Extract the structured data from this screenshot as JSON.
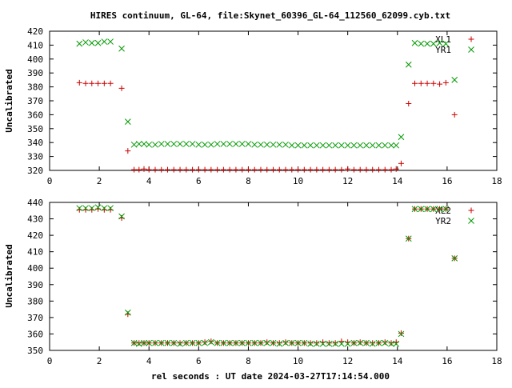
{
  "chart_data": [
    {
      "type": "scatter",
      "title": "HIRES continuum, GL-64, file:Skynet_60396_GL-64_112560_62099.cyb.txt",
      "xlabel": "",
      "ylabel": "Uncalibrated",
      "xlim": [
        0,
        18
      ],
      "ylim": [
        320,
        420
      ],
      "xticks": [
        "0",
        "2",
        "4",
        "6",
        "8",
        "10",
        "12",
        "14",
        "16",
        "18"
      ],
      "yticks": [
        "320",
        "330",
        "340",
        "350",
        "360",
        "370",
        "380",
        "390",
        "400",
        "410",
        "420"
      ],
      "legend_position": "top-right",
      "series": [
        {
          "name": "XL1",
          "marker": "plus",
          "color": "#cc0000",
          "points": [
            [
              1.2,
              383
            ],
            [
              1.45,
              382.5
            ],
            [
              1.7,
              382.5
            ],
            [
              1.95,
              382.5
            ],
            [
              2.2,
              382.5
            ],
            [
              2.45,
              382.5
            ],
            [
              2.9,
              379
            ],
            [
              3.15,
              334
            ],
            [
              3.4,
              320.5
            ],
            [
              3.6,
              320.5
            ],
            [
              3.8,
              321
            ],
            [
              4.0,
              320.5
            ],
            [
              4.25,
              320.5
            ],
            [
              4.5,
              320.5
            ],
            [
              4.75,
              320.5
            ],
            [
              5.0,
              320.5
            ],
            [
              5.25,
              320.5
            ],
            [
              5.5,
              320.5
            ],
            [
              5.75,
              320.5
            ],
            [
              6.0,
              320.5
            ],
            [
              6.25,
              320.5
            ],
            [
              6.5,
              320.5
            ],
            [
              6.75,
              320.5
            ],
            [
              7.0,
              320.5
            ],
            [
              7.25,
              320.5
            ],
            [
              7.5,
              320.5
            ],
            [
              7.75,
              320.5
            ],
            [
              8.0,
              320.5
            ],
            [
              8.25,
              320.5
            ],
            [
              8.5,
              320.5
            ],
            [
              8.75,
              320.5
            ],
            [
              9.0,
              320.5
            ],
            [
              9.25,
              320.5
            ],
            [
              9.5,
              320.5
            ],
            [
              9.75,
              320.5
            ],
            [
              10.0,
              320.5
            ],
            [
              10.25,
              320.5
            ],
            [
              10.5,
              320.5
            ],
            [
              10.75,
              320.5
            ],
            [
              11.0,
              320.5
            ],
            [
              11.25,
              320.5
            ],
            [
              11.5,
              320.5
            ],
            [
              11.75,
              320.5
            ],
            [
              12.0,
              321
            ],
            [
              12.25,
              320.5
            ],
            [
              12.5,
              320.5
            ],
            [
              12.75,
              320.5
            ],
            [
              13.0,
              320.5
            ],
            [
              13.25,
              320.5
            ],
            [
              13.5,
              320.5
            ],
            [
              13.75,
              320.5
            ],
            [
              13.95,
              321
            ],
            [
              14.15,
              325
            ],
            [
              14.45,
              368
            ],
            [
              14.7,
              382.5
            ],
            [
              14.95,
              382.5
            ],
            [
              15.2,
              382.5
            ],
            [
              15.45,
              382.5
            ],
            [
              15.7,
              382
            ],
            [
              15.95,
              383
            ],
            [
              16.3,
              360
            ]
          ]
        },
        {
          "name": "YR1",
          "marker": "cross",
          "color": "#009900",
          "points": [
            [
              1.2,
              411
            ],
            [
              1.45,
              412
            ],
            [
              1.7,
              411.5
            ],
            [
              1.95,
              411.5
            ],
            [
              2.2,
              412.5
            ],
            [
              2.45,
              412.5
            ],
            [
              2.9,
              407.5
            ],
            [
              3.15,
              355
            ],
            [
              3.4,
              338.5
            ],
            [
              3.6,
              339
            ],
            [
              3.8,
              339
            ],
            [
              4.0,
              338.5
            ],
            [
              4.25,
              338.5
            ],
            [
              4.5,
              339
            ],
            [
              4.75,
              339
            ],
            [
              5.0,
              339
            ],
            [
              5.25,
              339
            ],
            [
              5.5,
              339
            ],
            [
              5.75,
              339
            ],
            [
              6.0,
              338.5
            ],
            [
              6.25,
              338.5
            ],
            [
              6.5,
              338.5
            ],
            [
              6.75,
              339
            ],
            [
              7.0,
              339
            ],
            [
              7.25,
              339
            ],
            [
              7.5,
              339
            ],
            [
              7.75,
              339
            ],
            [
              8.0,
              339
            ],
            [
              8.25,
              338.5
            ],
            [
              8.5,
              338.5
            ],
            [
              8.75,
              338.5
            ],
            [
              9.0,
              338.5
            ],
            [
              9.25,
              338.5
            ],
            [
              9.5,
              338.5
            ],
            [
              9.75,
              338
            ],
            [
              10.0,
              338
            ],
            [
              10.25,
              338
            ],
            [
              10.5,
              338
            ],
            [
              10.75,
              338
            ],
            [
              11.0,
              338
            ],
            [
              11.25,
              338
            ],
            [
              11.5,
              338
            ],
            [
              11.75,
              338
            ],
            [
              12.0,
              338
            ],
            [
              12.25,
              338
            ],
            [
              12.5,
              338
            ],
            [
              12.75,
              338
            ],
            [
              13.0,
              338
            ],
            [
              13.25,
              338
            ],
            [
              13.5,
              338
            ],
            [
              13.75,
              338
            ],
            [
              13.95,
              338
            ],
            [
              14.15,
              344
            ],
            [
              14.45,
              396
            ],
            [
              14.7,
              411.5
            ],
            [
              14.95,
              411
            ],
            [
              15.2,
              411
            ],
            [
              15.45,
              411
            ],
            [
              15.7,
              411.5
            ],
            [
              15.95,
              411
            ],
            [
              16.3,
              385
            ]
          ]
        }
      ]
    },
    {
      "type": "scatter",
      "title": "",
      "xlabel": "rel seconds : UT date 2024-03-27T17:14:54.000",
      "ylabel": "Uncalibrated",
      "xlim": [
        0,
        18
      ],
      "ylim": [
        350,
        440
      ],
      "xticks": [
        "0",
        "2",
        "4",
        "6",
        "8",
        "10",
        "12",
        "14",
        "16",
        "18"
      ],
      "yticks": [
        "350",
        "360",
        "370",
        "380",
        "390",
        "400",
        "410",
        "420",
        "430",
        "440"
      ],
      "legend_position": "top-right",
      "series": [
        {
          "name": "XL2",
          "marker": "plus",
          "color": "#cc0000",
          "points": [
            [
              1.2,
              435.5
            ],
            [
              1.45,
              435.5
            ],
            [
              1.7,
              435.5
            ],
            [
              1.95,
              436
            ],
            [
              2.2,
              435.5
            ],
            [
              2.45,
              435.5
            ],
            [
              2.9,
              430.5
            ],
            [
              3.15,
              372
            ],
            [
              3.4,
              354.5
            ],
            [
              3.6,
              354.5
            ],
            [
              3.8,
              354.5
            ],
            [
              4.0,
              354.5
            ],
            [
              4.25,
              354.5
            ],
            [
              4.5,
              354.5
            ],
            [
              4.75,
              354.5
            ],
            [
              5.0,
              354.5
            ],
            [
              5.25,
              354.5
            ],
            [
              5.5,
              354.5
            ],
            [
              5.75,
              354.5
            ],
            [
              6.0,
              354.5
            ],
            [
              6.25,
              355
            ],
            [
              6.5,
              355.5
            ],
            [
              6.75,
              354.5
            ],
            [
              7.0,
              354.5
            ],
            [
              7.25,
              354.5
            ],
            [
              7.5,
              354.5
            ],
            [
              7.75,
              354.5
            ],
            [
              8.0,
              354.5
            ],
            [
              8.25,
              354.5
            ],
            [
              8.5,
              354.5
            ],
            [
              8.75,
              355
            ],
            [
              9.0,
              354.5
            ],
            [
              9.25,
              354.5
            ],
            [
              9.5,
              355
            ],
            [
              9.75,
              354.5
            ],
            [
              10.0,
              354.5
            ],
            [
              10.25,
              354.5
            ],
            [
              10.5,
              354.5
            ],
            [
              10.75,
              354.5
            ],
            [
              11.0,
              355
            ],
            [
              11.25,
              354.5
            ],
            [
              11.5,
              354.5
            ],
            [
              11.75,
              355.5
            ],
            [
              12.0,
              355
            ],
            [
              12.25,
              354.5
            ],
            [
              12.5,
              355
            ],
            [
              12.75,
              354.5
            ],
            [
              13.0,
              354.5
            ],
            [
              13.25,
              354.5
            ],
            [
              13.5,
              355
            ],
            [
              13.75,
              354.5
            ],
            [
              13.95,
              355
            ],
            [
              14.15,
              360.5
            ],
            [
              14.45,
              418
            ],
            [
              14.7,
              436
            ],
            [
              14.95,
              436
            ],
            [
              15.2,
              436
            ],
            [
              15.45,
              436
            ],
            [
              15.7,
              436
            ],
            [
              15.95,
              436
            ],
            [
              16.3,
              406
            ]
          ]
        },
        {
          "name": "YR2",
          "marker": "cross",
          "color": "#009900",
          "points": [
            [
              1.2,
              436.5
            ],
            [
              1.45,
              436.5
            ],
            [
              1.7,
              436.5
            ],
            [
              1.95,
              437
            ],
            [
              2.2,
              436.5
            ],
            [
              2.45,
              436.5
            ],
            [
              2.9,
              431.5
            ],
            [
              3.15,
              373
            ],
            [
              3.4,
              354.5
            ],
            [
              3.6,
              354
            ],
            [
              3.8,
              354.5
            ],
            [
              4.0,
              354.5
            ],
            [
              4.25,
              354.5
            ],
            [
              4.5,
              354.5
            ],
            [
              4.75,
              354.5
            ],
            [
              5.0,
              354.5
            ],
            [
              5.25,
              354
            ],
            [
              5.5,
              354.5
            ],
            [
              5.75,
              354.5
            ],
            [
              6.0,
              354.5
            ],
            [
              6.25,
              354.5
            ],
            [
              6.5,
              355
            ],
            [
              6.75,
              354.5
            ],
            [
              7.0,
              354.5
            ],
            [
              7.25,
              354.5
            ],
            [
              7.5,
              354.5
            ],
            [
              7.75,
              354.5
            ],
            [
              8.0,
              354.5
            ],
            [
              8.25,
              354.5
            ],
            [
              8.5,
              354.5
            ],
            [
              8.75,
              354.5
            ],
            [
              9.0,
              354.5
            ],
            [
              9.25,
              354
            ],
            [
              9.5,
              354.5
            ],
            [
              9.75,
              354.5
            ],
            [
              10.0,
              354.5
            ],
            [
              10.25,
              354.5
            ],
            [
              10.5,
              354
            ],
            [
              10.75,
              354
            ],
            [
              11.0,
              354
            ],
            [
              11.25,
              354
            ],
            [
              11.5,
              354
            ],
            [
              11.75,
              354
            ],
            [
              12.0,
              354
            ],
            [
              12.25,
              354.5
            ],
            [
              12.5,
              354.5
            ],
            [
              12.75,
              354.5
            ],
            [
              13.0,
              354
            ],
            [
              13.25,
              354.5
            ],
            [
              13.5,
              354.5
            ],
            [
              13.75,
              354
            ],
            [
              13.95,
              354
            ],
            [
              14.15,
              360
            ],
            [
              14.45,
              418
            ],
            [
              14.7,
              436
            ],
            [
              14.95,
              436
            ],
            [
              15.2,
              436
            ],
            [
              15.45,
              436
            ],
            [
              15.7,
              436
            ],
            [
              15.95,
              436
            ],
            [
              16.3,
              406
            ]
          ]
        }
      ]
    }
  ]
}
